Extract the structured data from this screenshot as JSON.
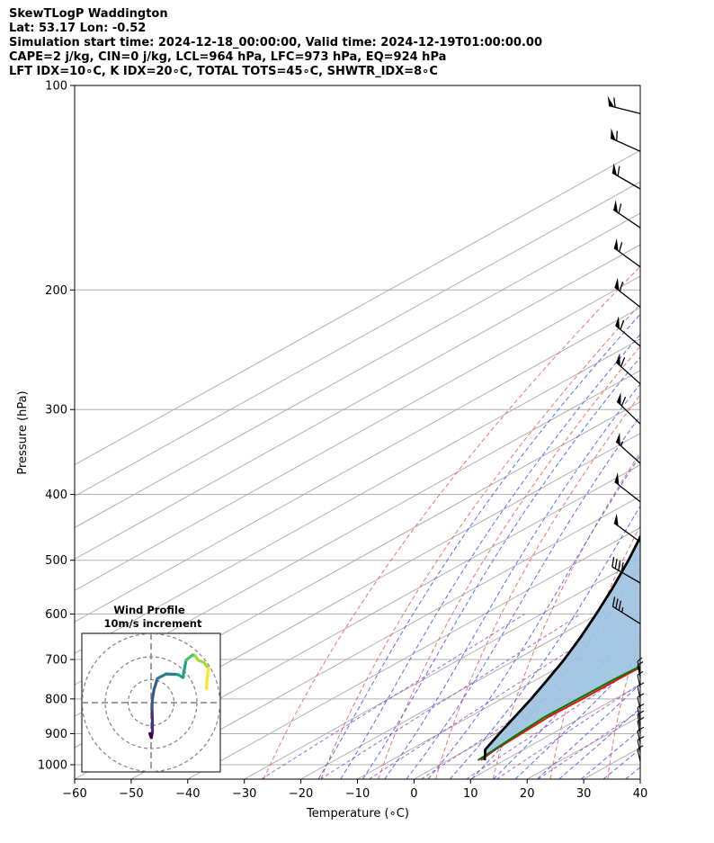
{
  "header": {
    "line1": "SkewTLogP Waddington",
    "line2": "Lat: 53.17   Lon: -0.52",
    "line3": "Simulation start time: 2024-12-18_00:00:00, Valid time: 2024-12-19T01:00:00.00",
    "line4": "CAPE=2 j/kg, CIN=0 j/kg, LCL=964 hPa, LFC=973 hPa, EQ=924 hPa",
    "line5": "LFT IDX=10∘C, K IDX=20∘C, TOTAL TOTS=45∘C, SHWTR_IDX=8∘C"
  },
  "chart_data": {
    "type": "line",
    "subtype": "skew-t log-p",
    "xlabel": "Temperature (∘C)",
    "ylabel": "Pressure (hPa)",
    "xlim": [
      -60,
      40
    ],
    "ylim": [
      1050,
      100
    ],
    "y_scale": "log",
    "grid": true,
    "x_ticks": [
      "−60",
      "−50",
      "−40",
      "−30",
      "−20",
      "−10",
      "0",
      "10",
      "20",
      "30",
      "40"
    ],
    "x_tick_values": [
      -60,
      -50,
      -40,
      -30,
      -20,
      -10,
      0,
      10,
      20,
      30,
      40
    ],
    "y_ticks": [
      "100",
      "200",
      "300",
      "400",
      "500",
      "600",
      "700",
      "800",
      "900",
      "1000"
    ],
    "y_tick_values": [
      100,
      200,
      300,
      400,
      500,
      600,
      700,
      800,
      900,
      1000
    ],
    "colors": {
      "temperature": "#e81010",
      "dewpoint": "#007a00",
      "parcel": "#000000",
      "cape_fill": "#a0c4e0",
      "dry_adiabat": "#f06060",
      "moist_adiabat": "#4a5cf0",
      "mixing_ratio": "#9040c0",
      "isotherm": "#aaaaaa"
    },
    "series": [
      {
        "name": "",
        "role": "temperature",
        "p": [
          985,
          950,
          900,
          850,
          800,
          750,
          700,
          650,
          620,
          600,
          550,
          500,
          450,
          400,
          370,
          340,
          320,
          300,
          280,
          260,
          240,
          220,
          200,
          180,
          160,
          140,
          120,
          100
        ],
        "t": [
          5.8,
          5,
          4.5,
          4,
          4.3,
          4.3,
          4.5,
          4.2,
          3.5,
          1.5,
          -2.8,
          -6.5,
          -11,
          -17,
          -21,
          -25,
          -28,
          -31.5,
          -35,
          -39.5,
          -45.2,
          -52,
          -58.5,
          -62,
          -66,
          -70.6,
          -77,
          -85
        ]
      },
      {
        "name": "",
        "role": "dewpoint",
        "p": [
          985,
          950,
          900,
          850,
          800,
          750,
          700,
          650,
          620,
          600,
          550,
          500,
          450,
          400,
          370,
          340,
          320,
          300,
          280,
          260,
          240,
          220,
          200,
          180,
          160,
          140,
          120,
          100
        ],
        "t": [
          5.3,
          4.8,
          4,
          3.3,
          3.5,
          3.6,
          4.3,
          4.4,
          3.3,
          0.3,
          -6.5,
          -11.2,
          -15,
          -20,
          -23,
          -26,
          -28,
          -31,
          -36,
          -41,
          -47,
          -55,
          -63,
          -70.5,
          -70.5,
          -73,
          -78,
          -85
        ]
      },
      {
        "name": "",
        "role": "parcel",
        "p": [
          985,
          950,
          900,
          850,
          800,
          750,
          700,
          650,
          600,
          550,
          500,
          450,
          400,
          350,
          300,
          250,
          200,
          170,
          150,
          130,
          115,
          100
        ],
        "t": [
          6.5,
          3.2,
          0.6,
          -2,
          -4.8,
          -8,
          -11.5,
          -15.6,
          -20.3,
          -25.6,
          -31.7,
          -38.8,
          -47,
          -56.3,
          -67.3,
          -81,
          -98,
          -110.5,
          -120.5,
          -132,
          -143,
          -156
        ]
      }
    ],
    "wind_barbs": [
      {
        "p": 110,
        "speed_kt": 60,
        "dir_deg": 284
      },
      {
        "p": 125,
        "speed_kt": 60,
        "dir_deg": 294
      },
      {
        "p": 142,
        "speed_kt": 60,
        "dir_deg": 300
      },
      {
        "p": 162,
        "speed_kt": 60,
        "dir_deg": 304
      },
      {
        "p": 185,
        "speed_kt": 60,
        "dir_deg": 306
      },
      {
        "p": 212,
        "speed_kt": 60,
        "dir_deg": 308
      },
      {
        "p": 242,
        "speed_kt": 60,
        "dir_deg": 310
      },
      {
        "p": 275,
        "speed_kt": 60,
        "dir_deg": 312
      },
      {
        "p": 315,
        "speed_kt": 60,
        "dir_deg": 314
      },
      {
        "p": 360,
        "speed_kt": 55,
        "dir_deg": 312
      },
      {
        "p": 410,
        "speed_kt": 50,
        "dir_deg": 308
      },
      {
        "p": 470,
        "speed_kt": 50,
        "dir_deg": 306
      },
      {
        "p": 540,
        "speed_kt": 40,
        "dir_deg": 300
      },
      {
        "p": 620,
        "speed_kt": 35,
        "dir_deg": 302
      }
    ],
    "hodograph": {
      "title": "Wind Profile",
      "subtitle": "10m/s increment",
      "rings_ms": [
        10,
        20,
        30
      ],
      "u": [
        -0.5,
        -0.2,
        0.1,
        0.6,
        0.6,
        0.4,
        0.6,
        1.2,
        2.8,
        6.5,
        11.5,
        14,
        14.2,
        15.3,
        18.1,
        19.2,
        20.5,
        23,
        25,
        24.4,
        24.2
      ],
      "v": [
        -13.5,
        -14.5,
        -15.2,
        -12.5,
        -8,
        -2.5,
        1.5,
        5.5,
        10.5,
        12.5,
        12.3,
        11,
        13,
        18.5,
        20.8,
        20.4,
        18.5,
        17.5,
        15,
        10,
        6
      ],
      "colormap": [
        "#440154",
        "#46327e",
        "#365c8d",
        "#277f8e",
        "#1fa187",
        "#4ac16d",
        "#a0da39",
        "#fde725"
      ]
    }
  }
}
